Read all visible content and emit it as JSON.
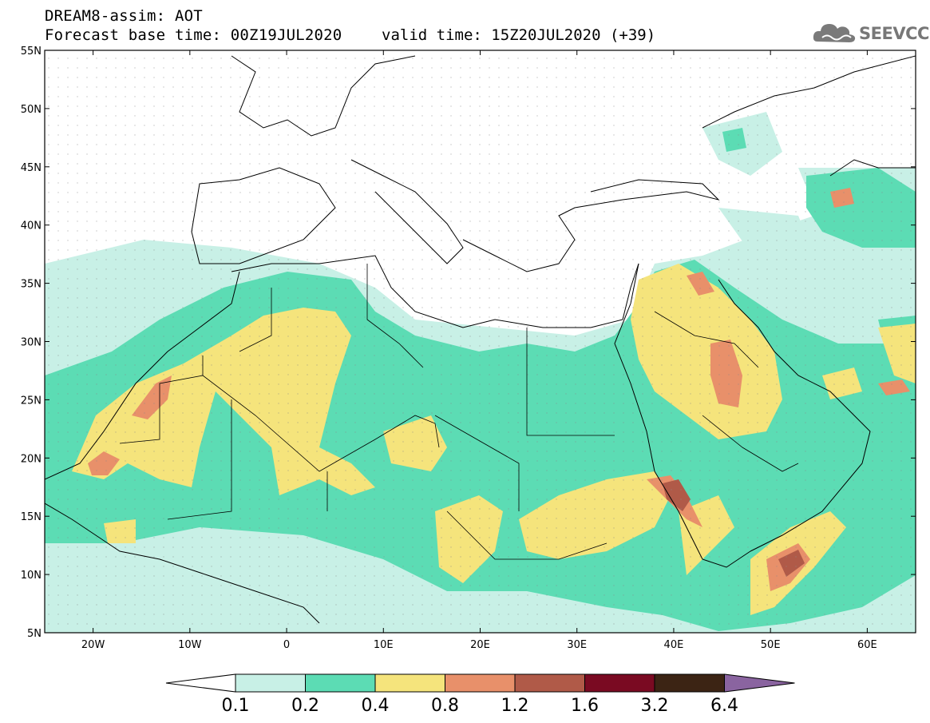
{
  "header": {
    "title": "DREAM8-assim: AOT",
    "base_time": "Forecast base time: 00Z19JUL2020",
    "valid_time": "valid time: 15Z20JUL2020 (+39)"
  },
  "logo": {
    "text": "SEEVCCC",
    "icon": "cloud-logo-icon"
  },
  "map": {
    "lat_labels": [
      "55N",
      "50N",
      "45N",
      "40N",
      "35N",
      "30N",
      "25N",
      "20N",
      "15N",
      "10N",
      "5N"
    ],
    "lat_values": [
      55,
      50,
      45,
      40,
      35,
      30,
      25,
      20,
      15,
      10,
      5
    ],
    "lon_labels": [
      "20W",
      "10W",
      "0",
      "10E",
      "20E",
      "30E",
      "40E",
      "50E",
      "60E"
    ],
    "lon_values": [
      -20,
      -10,
      0,
      10,
      20,
      30,
      40,
      50,
      60
    ],
    "extent": {
      "lon_min": -25,
      "lon_max": 65,
      "lat_min": 5,
      "lat_max": 55
    }
  },
  "colorbar": {
    "thresholds": [
      "0.1",
      "0.2",
      "0.4",
      "0.8",
      "1.2",
      "1.6",
      "3.2",
      "6.4"
    ],
    "colors": [
      "#ffffff",
      "#c8f0e6",
      "#5cdcb4",
      "#f5e47c",
      "#e8906a",
      "#b05a48",
      "#7a0a22",
      "#3c2414",
      "#8a64a0"
    ]
  }
}
